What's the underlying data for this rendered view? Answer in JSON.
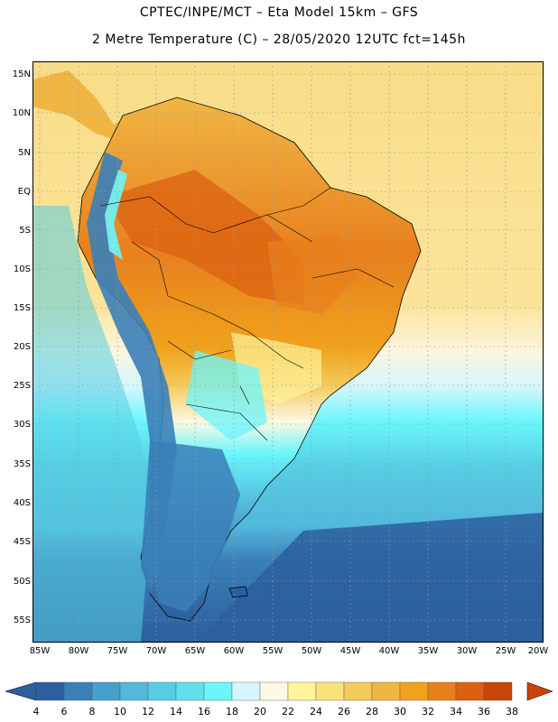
{
  "header": {
    "title_line1": "CPTEC/INPE/MCT –  Eta Model 15km – GFS",
    "title_line2": "2 Metre Temperature (C) – 28/05/2020 12UTC fct=145h"
  },
  "map": {
    "latitude_labels": [
      "15N",
      "10N",
      "5N",
      "EQ",
      "5S",
      "10S",
      "15S",
      "20S",
      "25S",
      "30S",
      "35S",
      "40S",
      "45S",
      "50S",
      "55S"
    ],
    "longitude_labels": [
      "85W",
      "80W",
      "75W",
      "70W",
      "65W",
      "60W",
      "55W",
      "50W",
      "45W",
      "40W",
      "35W",
      "30W",
      "25W",
      "20W"
    ]
  },
  "legend": {
    "values": [
      "4",
      "6",
      "8",
      "10",
      "12",
      "14",
      "16",
      "18",
      "20",
      "22",
      "24",
      "26",
      "28",
      "30",
      "32",
      "34",
      "36",
      "38"
    ],
    "colors": [
      "#2b5f9e",
      "#3a7fb8",
      "#45a0cc",
      "#52b8dc",
      "#56cde2",
      "#5fe0ec",
      "#6af6fc",
      "#d4f6fc",
      "#fdf8e4",
      "#fef49c",
      "#f8e27c",
      "#f4ca5c",
      "#f0b644",
      "#f0a21c",
      "#e8801c",
      "#dc6010",
      "#c84408"
    ]
  },
  "colors": {
    "ocean_cold": "#2b5f9e",
    "ocean_mid": "#52b8dc",
    "ocean_cyan": "#6af6fc",
    "tropical_sea": "#f8dd88",
    "land_hot": "#dc6010",
    "land_warm": "#f0a21c",
    "andes_cold": "#3a7fb8"
  }
}
